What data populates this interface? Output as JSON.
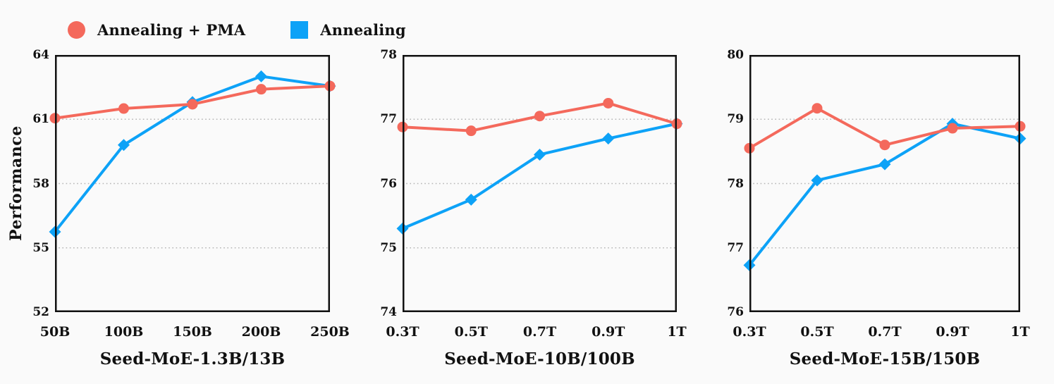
{
  "legend": {
    "items": [
      {
        "label": "Annealing + PMA",
        "color": "#F4695C",
        "marker": "circle"
      },
      {
        "label": "Annealing",
        "color": "#0DA2F7",
        "marker": "square"
      }
    ]
  },
  "colors": {
    "annealing_pma": "#F4695C",
    "annealing": "#0DA2F7",
    "frame": "#111111",
    "grid": "#b5b5b5"
  },
  "chart_data": [
    {
      "type": "line",
      "title": "Seed-MoE-1.3B/13B",
      "ylabel": "Performance",
      "categories": [
        "50B",
        "100B",
        "150B",
        "200B",
        "250B"
      ],
      "ylim": [
        52,
        64
      ],
      "yticks": [
        52,
        55,
        58,
        61,
        64
      ],
      "grid": "dotted-horizontal",
      "series": [
        {
          "name": "Annealing",
          "color": "#0DA2F7",
          "marker": "diamond",
          "values": [
            55.75,
            59.8,
            61.8,
            63.0,
            62.55
          ]
        },
        {
          "name": "Annealing + PMA",
          "color": "#F4695C",
          "marker": "circle",
          "values": [
            61.05,
            61.5,
            61.7,
            62.4,
            62.55
          ]
        }
      ]
    },
    {
      "type": "line",
      "title": "Seed-MoE-10B/100B",
      "ylabel": "",
      "categories": [
        "0.3T",
        "0.5T",
        "0.7T",
        "0.9T",
        "1T"
      ],
      "ylim": [
        74,
        78
      ],
      "yticks": [
        74,
        75,
        76,
        77,
        78
      ],
      "grid": "dotted-horizontal",
      "series": [
        {
          "name": "Annealing",
          "color": "#0DA2F7",
          "marker": "diamond",
          "values": [
            75.3,
            75.75,
            76.45,
            76.7,
            76.93
          ]
        },
        {
          "name": "Annealing + PMA",
          "color": "#F4695C",
          "marker": "circle",
          "values": [
            76.88,
            76.82,
            77.05,
            77.25,
            76.93
          ]
        }
      ]
    },
    {
      "type": "line",
      "title": "Seed-MoE-15B/150B",
      "ylabel": "",
      "categories": [
        "0.3T",
        "0.5T",
        "0.7T",
        "0.9T",
        "1T"
      ],
      "ylim": [
        76,
        80
      ],
      "yticks": [
        76,
        77,
        78,
        79,
        80
      ],
      "grid": "dotted-horizontal",
      "series": [
        {
          "name": "Annealing",
          "color": "#0DA2F7",
          "marker": "diamond",
          "values": [
            76.73,
            78.05,
            78.3,
            78.93,
            78.7
          ]
        },
        {
          "name": "Annealing + PMA",
          "color": "#F4695C",
          "marker": "circle",
          "values": [
            78.55,
            79.17,
            78.6,
            78.86,
            78.89
          ]
        }
      ]
    }
  ]
}
